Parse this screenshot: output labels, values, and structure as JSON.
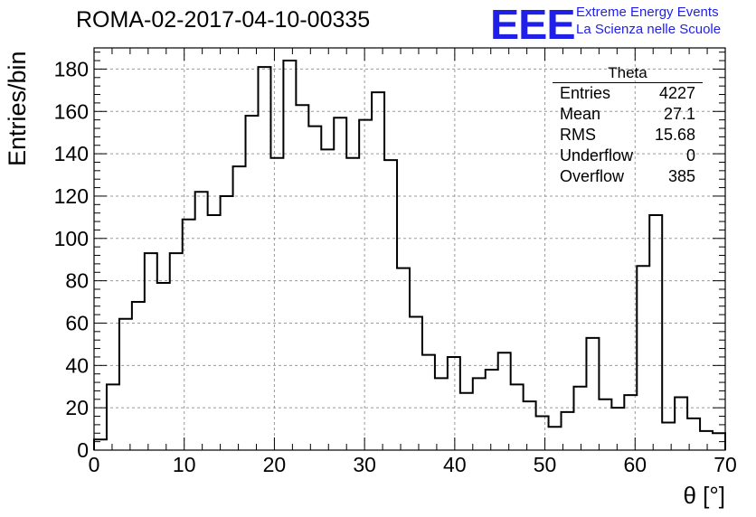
{
  "title": "ROMA-02-2017-04-10-00335",
  "logo": {
    "mark": "EEE",
    "line1": "Extreme Energy Events",
    "line2": "La Scienza nelle Scuole",
    "color": "#1f1fe8"
  },
  "stats_box": {
    "title": "Theta",
    "rows": [
      {
        "label": "Entries",
        "value": "4227"
      },
      {
        "label": "Mean",
        "value": "27.1"
      },
      {
        "label": "RMS",
        "value": "15.68"
      },
      {
        "label": "Underflow",
        "value": "0"
      },
      {
        "label": "Overflow",
        "value": "385"
      }
    ]
  },
  "chart_data": {
    "type": "bar",
    "style": "step-histogram",
    "title": "ROMA-02-2017-04-10-00335",
    "xlabel": "θ [°]",
    "ylabel": "Entries/bin",
    "xlim": [
      0,
      70
    ],
    "ylim": [
      0,
      190
    ],
    "bin_width": 1.4,
    "x_ticks": [
      0,
      10,
      20,
      30,
      40,
      50,
      60,
      70
    ],
    "y_ticks": [
      0,
      20,
      40,
      60,
      80,
      100,
      120,
      140,
      160,
      180
    ],
    "grid": true,
    "bin_edges": [
      0,
      1.4,
      2.8,
      4.2,
      5.6,
      7.0,
      8.4,
      9.8,
      11.2,
      12.6,
      14.0,
      15.4,
      16.8,
      18.2,
      19.6,
      21.0,
      22.4,
      23.8,
      25.2,
      26.6,
      28.0,
      29.4,
      30.8,
      32.2,
      33.6,
      35.0,
      36.4,
      37.8,
      39.2,
      40.6,
      42.0,
      43.4,
      44.8,
      46.2,
      47.6,
      49.0,
      50.4,
      51.8,
      53.2,
      54.6,
      56.0,
      57.4,
      58.8,
      60.2,
      61.6,
      63.0,
      64.4,
      65.8,
      67.2,
      68.6,
      70.0
    ],
    "values": [
      5,
      31,
      62,
      70,
      93,
      79,
      93,
      109,
      122,
      111,
      120,
      134,
      158,
      181,
      138,
      184,
      163,
      153,
      142,
      157,
      138,
      156,
      169,
      137,
      86,
      63,
      45,
      34,
      44,
      27,
      34,
      38,
      46,
      31,
      23,
      16,
      11,
      18,
      30,
      53,
      24,
      20,
      26,
      87,
      111,
      13,
      25,
      15,
      9,
      8
    ],
    "line_color": "#000000"
  }
}
